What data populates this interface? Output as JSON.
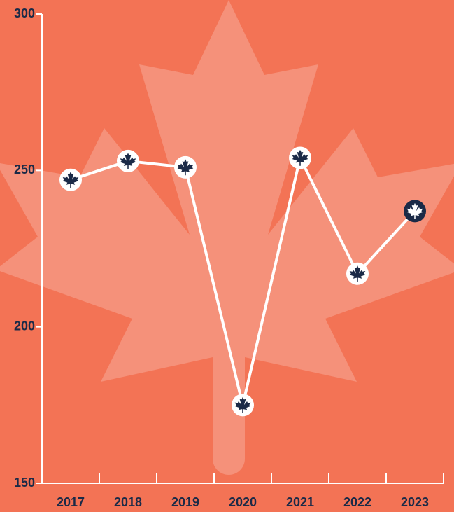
{
  "chart_data": {
    "type": "line",
    "categories": [
      "2017",
      "2018",
      "2019",
      "2020",
      "2021",
      "2022",
      "2023"
    ],
    "values": [
      247,
      253,
      251,
      175,
      254,
      217,
      237
    ],
    "color": "#ffffff",
    "marker_fill": "#ffffff",
    "icon_color": "#1b2a47",
    "highlight_category": "2023",
    "background": "#f37355",
    "ylim": [
      150,
      300
    ],
    "yticks": [
      150,
      200,
      250,
      300
    ]
  }
}
